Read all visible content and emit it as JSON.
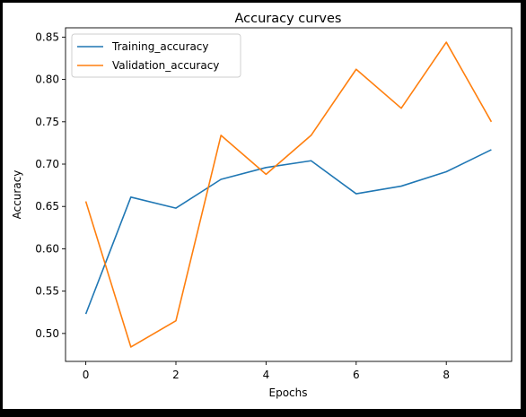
{
  "chart_data": {
    "type": "line",
    "title": "Accuracy curves",
    "xlabel": "Epochs",
    "ylabel": "Accuracy",
    "xlim": [
      -0.45,
      9.45
    ],
    "ylim": [
      0.467,
      0.861
    ],
    "xticks": [
      0,
      2,
      4,
      6,
      8
    ],
    "xtick_labels": [
      "0",
      "2",
      "4",
      "6",
      "8"
    ],
    "yticks": [
      0.5,
      0.55,
      0.6,
      0.65,
      0.7,
      0.75,
      0.8,
      0.85
    ],
    "ytick_labels": [
      "0.50",
      "0.55",
      "0.60",
      "0.65",
      "0.70",
      "0.75",
      "0.80",
      "0.85"
    ],
    "grid": false,
    "legend_position": "top-left",
    "x": [
      0,
      1,
      2,
      3,
      4,
      5,
      6,
      7,
      8,
      9
    ],
    "series": [
      {
        "name": "Training_accuracy",
        "color": "#1f77b4",
        "values": [
          0.523,
          0.661,
          0.648,
          0.682,
          0.696,
          0.704,
          0.665,
          0.674,
          0.691,
          0.717
        ]
      },
      {
        "name": "Validation_accuracy",
        "color": "#ff7f0e",
        "values": [
          0.656,
          0.484,
          0.515,
          0.734,
          0.688,
          0.734,
          0.812,
          0.766,
          0.844,
          0.75
        ]
      }
    ]
  }
}
